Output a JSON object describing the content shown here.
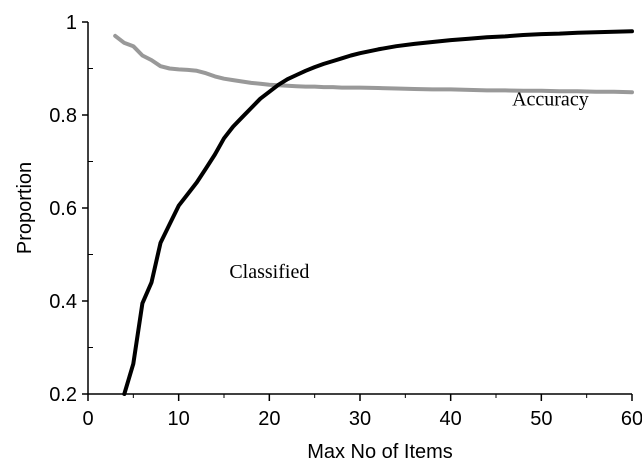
{
  "chart_data": {
    "type": "line",
    "xlabel": "Max No of Items",
    "ylabel": "Proportion",
    "xlim": [
      0,
      60
    ],
    "ylim": [
      0.2,
      1
    ],
    "xticks": [
      0,
      10,
      20,
      30,
      40,
      50,
      60
    ],
    "yticks": [
      0.2,
      0.4,
      0.6,
      0.8,
      1
    ],
    "ytick_labels": [
      "0.2",
      "0.4",
      "0.6",
      "0.8",
      "1"
    ],
    "grid": false,
    "series": [
      {
        "name": "Accuracy",
        "color": "#999999",
        "x": [
          3,
          4,
          5,
          6,
          7,
          8,
          9,
          10,
          11,
          12,
          13,
          14,
          15,
          16,
          17,
          18,
          19,
          20,
          21,
          22,
          23,
          24,
          25,
          26,
          27,
          28,
          29,
          30,
          32,
          34,
          36,
          38,
          40,
          42,
          44,
          46,
          48,
          50,
          52,
          54,
          56,
          58,
          60
        ],
        "y": [
          0.97,
          0.955,
          0.948,
          0.928,
          0.918,
          0.905,
          0.9,
          0.898,
          0.897,
          0.895,
          0.89,
          0.883,
          0.878,
          0.875,
          0.872,
          0.869,
          0.867,
          0.865,
          0.864,
          0.863,
          0.862,
          0.861,
          0.861,
          0.86,
          0.86,
          0.859,
          0.859,
          0.859,
          0.858,
          0.857,
          0.856,
          0.855,
          0.855,
          0.854,
          0.853,
          0.853,
          0.852,
          0.852,
          0.851,
          0.851,
          0.85,
          0.85,
          0.849
        ]
      },
      {
        "name": "Classified",
        "color": "#000000",
        "x": [
          4,
          5,
          6,
          7,
          8,
          9,
          10,
          11,
          12,
          13,
          14,
          15,
          16,
          17,
          18,
          19,
          20,
          21,
          22,
          23,
          24,
          25,
          26,
          27,
          28,
          29,
          30,
          32,
          34,
          36,
          38,
          40,
          42,
          44,
          46,
          48,
          50,
          52,
          54,
          56,
          58,
          60
        ],
        "y": [
          0.2,
          0.265,
          0.395,
          0.44,
          0.525,
          0.565,
          0.605,
          0.63,
          0.655,
          0.685,
          0.715,
          0.75,
          0.775,
          0.795,
          0.815,
          0.835,
          0.85,
          0.865,
          0.877,
          0.886,
          0.895,
          0.903,
          0.91,
          0.916,
          0.922,
          0.928,
          0.933,
          0.941,
          0.948,
          0.953,
          0.957,
          0.961,
          0.964,
          0.967,
          0.969,
          0.972,
          0.974,
          0.975,
          0.977,
          0.978,
          0.979,
          0.98
        ]
      }
    ],
    "annotations": [
      {
        "text": "Accuracy",
        "x": 51,
        "y": 0.82
      },
      {
        "text": "Classified",
        "x": 20,
        "y": 0.45
      }
    ]
  }
}
